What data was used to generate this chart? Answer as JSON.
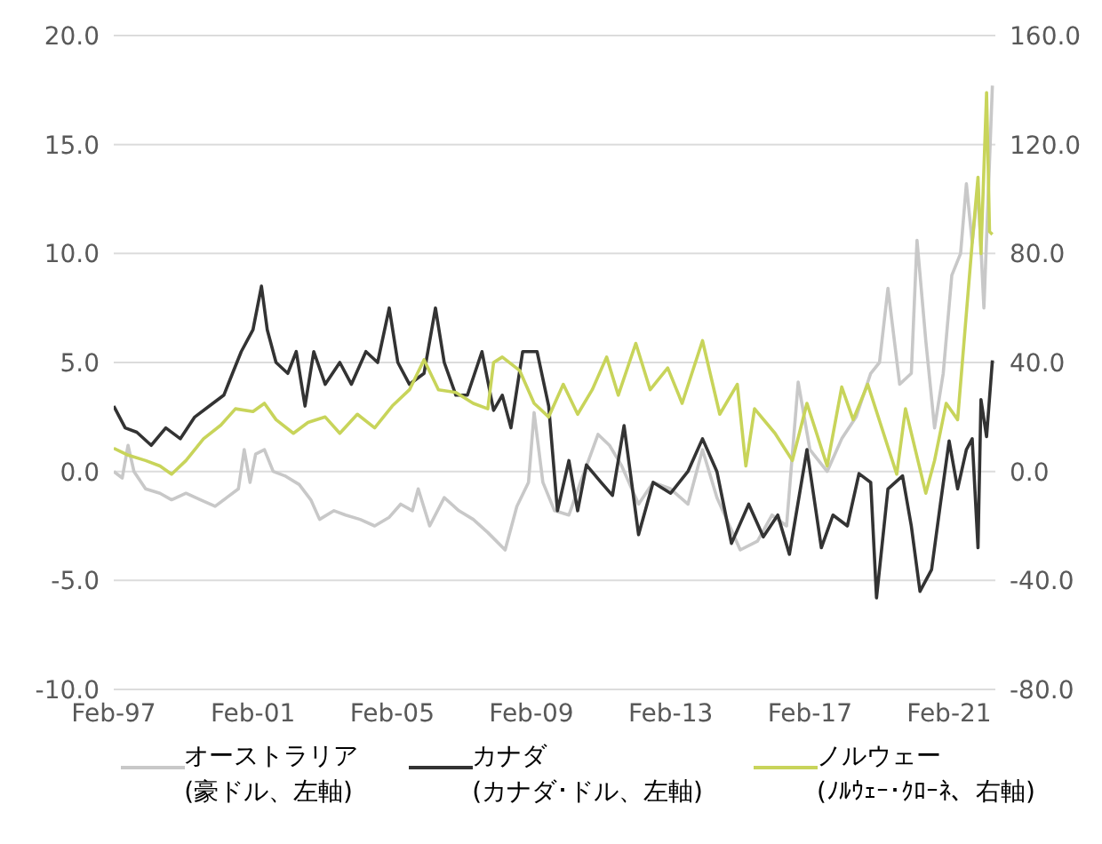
{
  "chart_data": {
    "type": "line",
    "xlim": [
      "1997-02",
      "2022-06"
    ],
    "xticks": [
      {
        "value": "1997-02",
        "label": "Feb-97"
      },
      {
        "value": "2001-02",
        "label": "Feb-01"
      },
      {
        "value": "2005-02",
        "label": "Feb-05"
      },
      {
        "value": "2009-02",
        "label": "Feb-09"
      },
      {
        "value": "2013-02",
        "label": "Feb-13"
      },
      {
        "value": "2017-02",
        "label": "Feb-17"
      },
      {
        "value": "2021-02",
        "label": "Feb-21"
      }
    ],
    "ylim": [
      -10,
      20
    ],
    "yticks": [
      {
        "value": -10,
        "label": "-10.0"
      },
      {
        "value": -5,
        "label": "-5.0"
      },
      {
        "value": 0,
        "label": "0.0"
      },
      {
        "value": 5,
        "label": "5.0"
      },
      {
        "value": 10,
        "label": "10.0"
      },
      {
        "value": 15,
        "label": "15.0"
      },
      {
        "value": 20,
        "label": "20.0"
      }
    ],
    "y2lim": [
      -80,
      160
    ],
    "y2ticks": [
      {
        "value": -80,
        "label": "-80.0"
      },
      {
        "value": -40,
        "label": "-40.0"
      },
      {
        "value": 0,
        "label": "0.0"
      },
      {
        "value": 40,
        "label": "40.0"
      },
      {
        "value": 80,
        "label": "80.0"
      },
      {
        "value": 120,
        "label": "120.0"
      },
      {
        "value": 160,
        "label": "160.0"
      }
    ],
    "grid": "y",
    "legend": "bottom",
    "marker": "none",
    "line_style": "solid",
    "series": [
      {
        "name": "オーストラリア\n(豪ドル、左軸)",
        "color": "#c8c8c8",
        "x": [
          "1997-02",
          "1997-05",
          "1997-07",
          "1997-09",
          "1998-01",
          "1998-06",
          "1998-10",
          "1999-03",
          "1999-08",
          "2000-01",
          "2000-05",
          "2000-09",
          "2000-11",
          "2001-01",
          "2001-03",
          "2001-06",
          "2001-09",
          "2002-01",
          "2002-06",
          "2002-10",
          "2003-01",
          "2003-06",
          "2003-10",
          "2004-03",
          "2004-08",
          "2005-01",
          "2005-05",
          "2005-09",
          "2005-11",
          "2006-03",
          "2006-08",
          "2007-01",
          "2007-06",
          "2007-11",
          "2008-05",
          "2008-09",
          "2009-01",
          "2009-03",
          "2009-06",
          "2009-10",
          "2010-03",
          "2010-07",
          "2011-01",
          "2011-05",
          "2011-09",
          "2012-03",
          "2012-08",
          "2013-02",
          "2013-08",
          "2014-01",
          "2014-06",
          "2015-02",
          "2015-08",
          "2016-01",
          "2016-06",
          "2016-10",
          "2017-02",
          "2017-08",
          "2018-01",
          "2018-06",
          "2018-11",
          "2019-02",
          "2019-05",
          "2019-09",
          "2020-01",
          "2020-03",
          "2020-06",
          "2020-09",
          "2020-12",
          "2021-03",
          "2021-06",
          "2021-08",
          "2021-10",
          "2021-12",
          "2022-02",
          "2022-05"
        ],
        "values": [
          0,
          -0.3,
          1.2,
          0,
          -0.8,
          -1,
          -1.3,
          -1,
          -1.3,
          -1.6,
          -1.2,
          -0.8,
          1,
          -0.5,
          0.8,
          1,
          0,
          -0.2,
          -0.6,
          -1.3,
          -2.2,
          -1.8,
          -2,
          -2.2,
          -2.5,
          -2.1,
          -1.5,
          -1.8,
          -0.8,
          -2.5,
          -1.2,
          -1.8,
          -2.2,
          -2.8,
          -3.6,
          -1.6,
          -0.5,
          2.7,
          -0.5,
          -1.8,
          -2,
          -0.5,
          1.7,
          1.2,
          0.3,
          -1.5,
          -0.5,
          -0.8,
          -1.5,
          1,
          -1.2,
          -3.6,
          -3.2,
          -2,
          -2.5,
          4.1,
          1,
          0,
          1.5,
          2.5,
          4.5,
          5,
          8.4,
          4,
          4.5,
          10.6,
          6,
          2,
          4.5,
          9,
          10,
          13.2,
          10.5,
          13,
          7.5,
          17.7
        ]
      },
      {
        "name": "カナダ\n(カナダ･ドル、左軸)",
        "color": "#333333",
        "x": [
          "1997-02",
          "1997-06",
          "1997-10",
          "1998-03",
          "1998-08",
          "1999-01",
          "1999-06",
          "1999-11",
          "2000-04",
          "2000-07",
          "2000-10",
          "2001-02",
          "2001-05",
          "2001-07",
          "2001-10",
          "2002-02",
          "2002-05",
          "2002-08",
          "2002-11",
          "2003-03",
          "2003-08",
          "2003-12",
          "2004-05",
          "2004-09",
          "2005-01",
          "2005-04",
          "2005-08",
          "2006-01",
          "2006-05",
          "2006-08",
          "2006-12",
          "2007-04",
          "2007-09",
          "2008-01",
          "2008-04",
          "2008-07",
          "2008-11",
          "2009-04",
          "2009-08",
          "2009-11",
          "2010-03",
          "2010-06",
          "2010-09",
          "2011-02",
          "2011-06",
          "2011-10",
          "2012-03",
          "2012-08",
          "2013-02",
          "2013-08",
          "2014-01",
          "2014-06",
          "2014-11",
          "2015-05",
          "2015-10",
          "2016-03",
          "2016-07",
          "2017-01",
          "2017-06",
          "2017-10",
          "2018-03",
          "2018-07",
          "2018-11",
          "2019-01",
          "2019-05",
          "2019-10",
          "2020-01",
          "2020-04",
          "2020-08",
          "2020-11",
          "2021-02",
          "2021-05",
          "2021-08",
          "2021-10",
          "2021-12",
          "2022-01",
          "2022-03",
          "2022-05"
        ],
        "values": [
          3,
          2,
          1.8,
          1.2,
          2,
          1.5,
          2.5,
          3,
          3.5,
          4.5,
          5.5,
          6.5,
          8.5,
          6.5,
          5,
          4.5,
          5.5,
          3,
          5.5,
          4,
          5,
          4,
          5.5,
          5,
          7.5,
          5,
          4,
          4.5,
          7.5,
          5,
          3.5,
          3.5,
          5.5,
          2.8,
          3.5,
          2,
          5.5,
          5.5,
          3,
          -1.8,
          0.5,
          -1.8,
          0.3,
          -0.5,
          -1.1,
          2.1,
          -2.9,
          -0.5,
          -1,
          0,
          1.5,
          0,
          -3.3,
          -1.5,
          -3,
          -2,
          -3.8,
          1,
          -3.5,
          -2,
          -2.5,
          -0.1,
          -0.5,
          -5.8,
          -0.8,
          -0.2,
          -2.5,
          -5.5,
          -4.5,
          -1.5,
          1.4,
          -0.8,
          1,
          1.5,
          -3.5,
          3.3,
          1.6,
          5.1
        ]
      },
      {
        "name": "ノルウェー\n(ﾉﾙｳｪｰ･ｸﾛｰﾈ、右軸)",
        "color": "#c8d45a",
        "axis": "y2",
        "x": [
          "1997-02",
          "1997-07",
          "1998-01",
          "1998-06",
          "1998-10",
          "1999-03",
          "1999-09",
          "2000-03",
          "2000-08",
          "2001-02",
          "2001-06",
          "2001-10",
          "2002-04",
          "2002-09",
          "2003-03",
          "2003-08",
          "2004-02",
          "2004-08",
          "2005-02",
          "2005-08",
          "2006-01",
          "2006-06",
          "2006-12",
          "2007-06",
          "2007-11",
          "2008-01",
          "2008-04",
          "2008-10",
          "2009-03",
          "2009-08",
          "2010-01",
          "2010-06",
          "2010-11",
          "2011-04",
          "2011-08",
          "2012-02",
          "2012-07",
          "2013-01",
          "2013-06",
          "2014-01",
          "2014-07",
          "2015-01",
          "2015-04",
          "2015-07",
          "2016-02",
          "2016-08",
          "2017-01",
          "2017-08",
          "2018-01",
          "2018-05",
          "2018-10",
          "2019-08",
          "2019-11",
          "2020-06",
          "2020-09",
          "2021-01",
          "2021-05",
          "2021-10",
          "2021-12",
          "2022-01",
          "2022-03",
          "2022-04",
          "2022-05"
        ],
        "values": [
          8.5,
          6,
          4,
          2,
          -1,
          4,
          12,
          17,
          23,
          22,
          25,
          19,
          14,
          18,
          20,
          14,
          21,
          16,
          24,
          30,
          41,
          30,
          29,
          25,
          23,
          40,
          42,
          37,
          25,
          20,
          32,
          21,
          30,
          42,
          28,
          47,
          30,
          38,
          25,
          48,
          21,
          32,
          2,
          23,
          14,
          4,
          25,
          2,
          31,
          19,
          32,
          -1,
          23,
          -8,
          4,
          25,
          19,
          84,
          108,
          80,
          139,
          88,
          87
        ]
      }
    ]
  }
}
